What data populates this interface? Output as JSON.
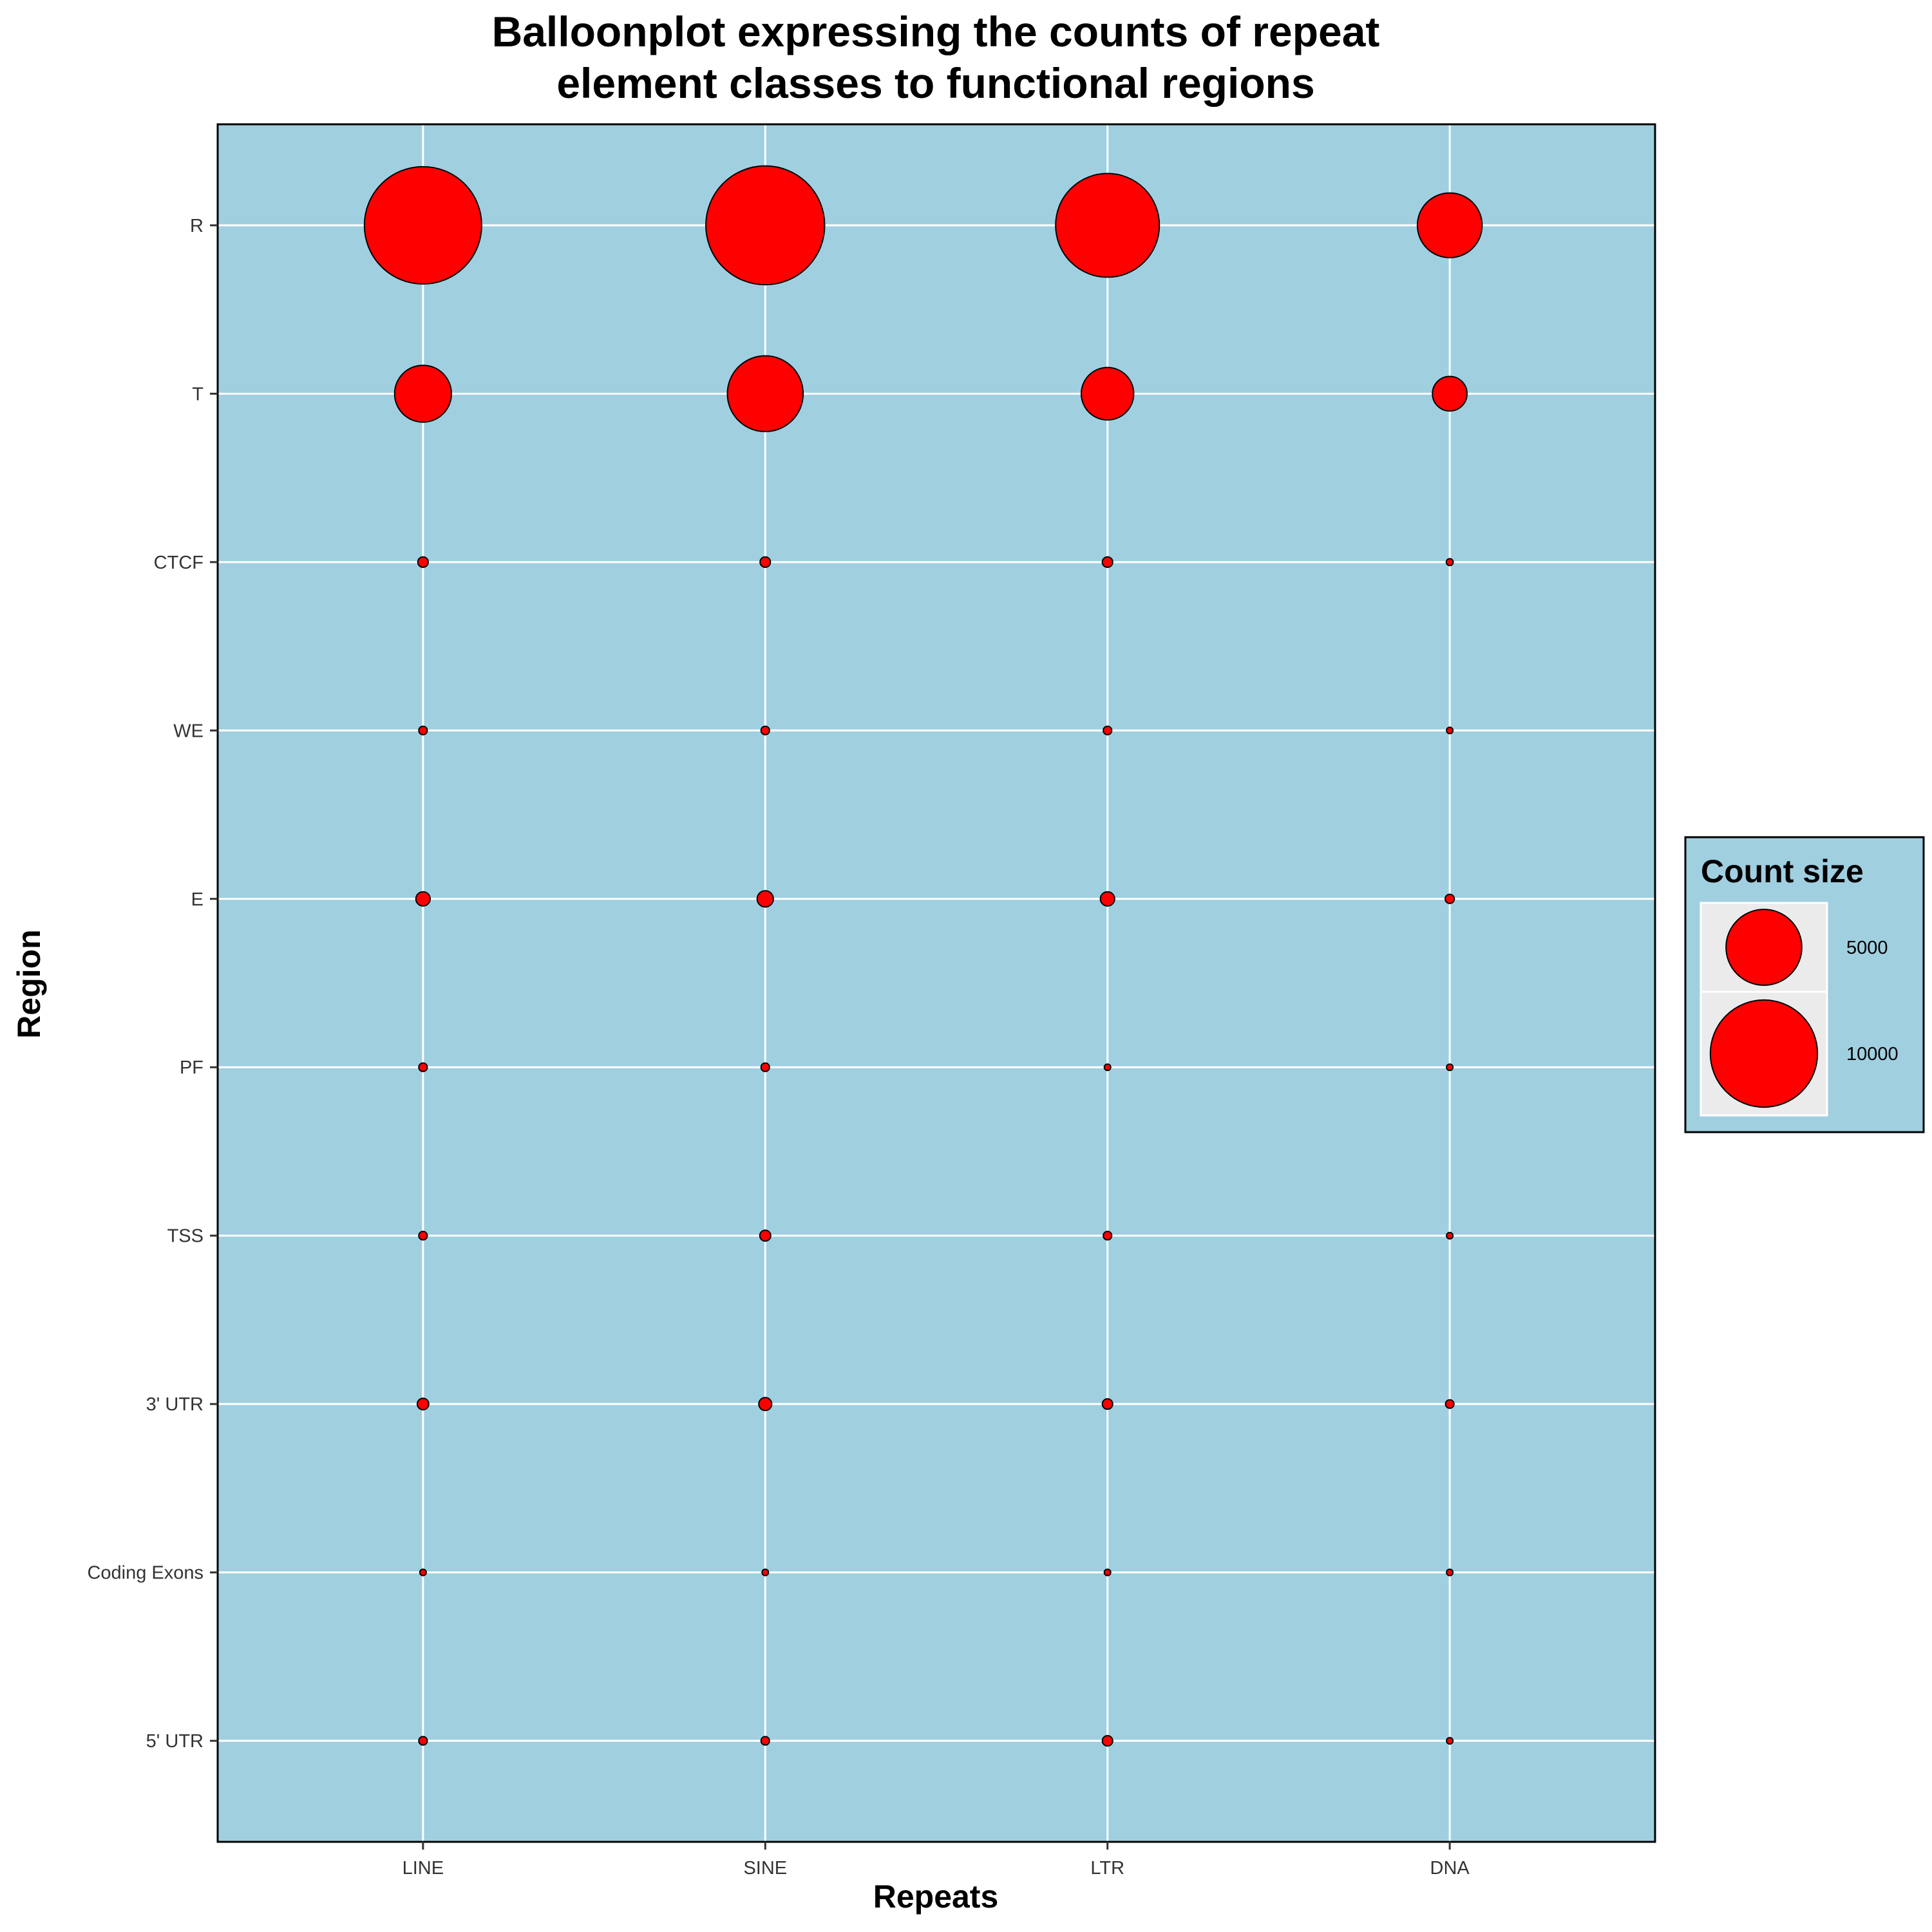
{
  "chart_data": {
    "type": "scatter",
    "title": [
      "Balloonplot expressing the counts of repeat",
      "element classes to functional regions"
    ],
    "xlabel": "Repeats",
    "ylabel": "Region",
    "categories_x": [
      "LINE",
      "SINE",
      "LTR",
      "DNA"
    ],
    "categories_y": [
      "5' UTR",
      "Coding Exons",
      "3' UTR",
      "TSS",
      "PF",
      "E",
      "WE",
      "CTCF",
      "T",
      "R"
    ],
    "series": [
      {
        "x": "LINE",
        "values": [
          60,
          30,
          110,
          60,
          60,
          170,
          60,
          90,
          2700,
          11500
        ]
      },
      {
        "x": "SINE",
        "values": [
          60,
          20,
          140,
          100,
          60,
          220,
          60,
          90,
          4800,
          11800
        ]
      },
      {
        "x": "LTR",
        "values": [
          90,
          10,
          90,
          60,
          30,
          170,
          60,
          90,
          2300,
          9000
        ]
      },
      {
        "x": "DNA",
        "values": [
          20,
          8,
          60,
          30,
          20,
          70,
          20,
          40,
          1000,
          3500
        ]
      }
    ],
    "legend": {
      "title": "Count size",
      "entries": [
        {
          "label": "5000",
          "value": 5000
        },
        {
          "label": "10000",
          "value": 10000
        }
      ],
      "position": "right"
    },
    "colors": {
      "panel": "#a0cfe0",
      "grid": "#ffffff",
      "point_fill": "#ff0000",
      "point_stroke": "#000000",
      "legend_bg": "#a0cfe0",
      "legend_key_bg": "#ebebeb"
    },
    "grid": true
  }
}
